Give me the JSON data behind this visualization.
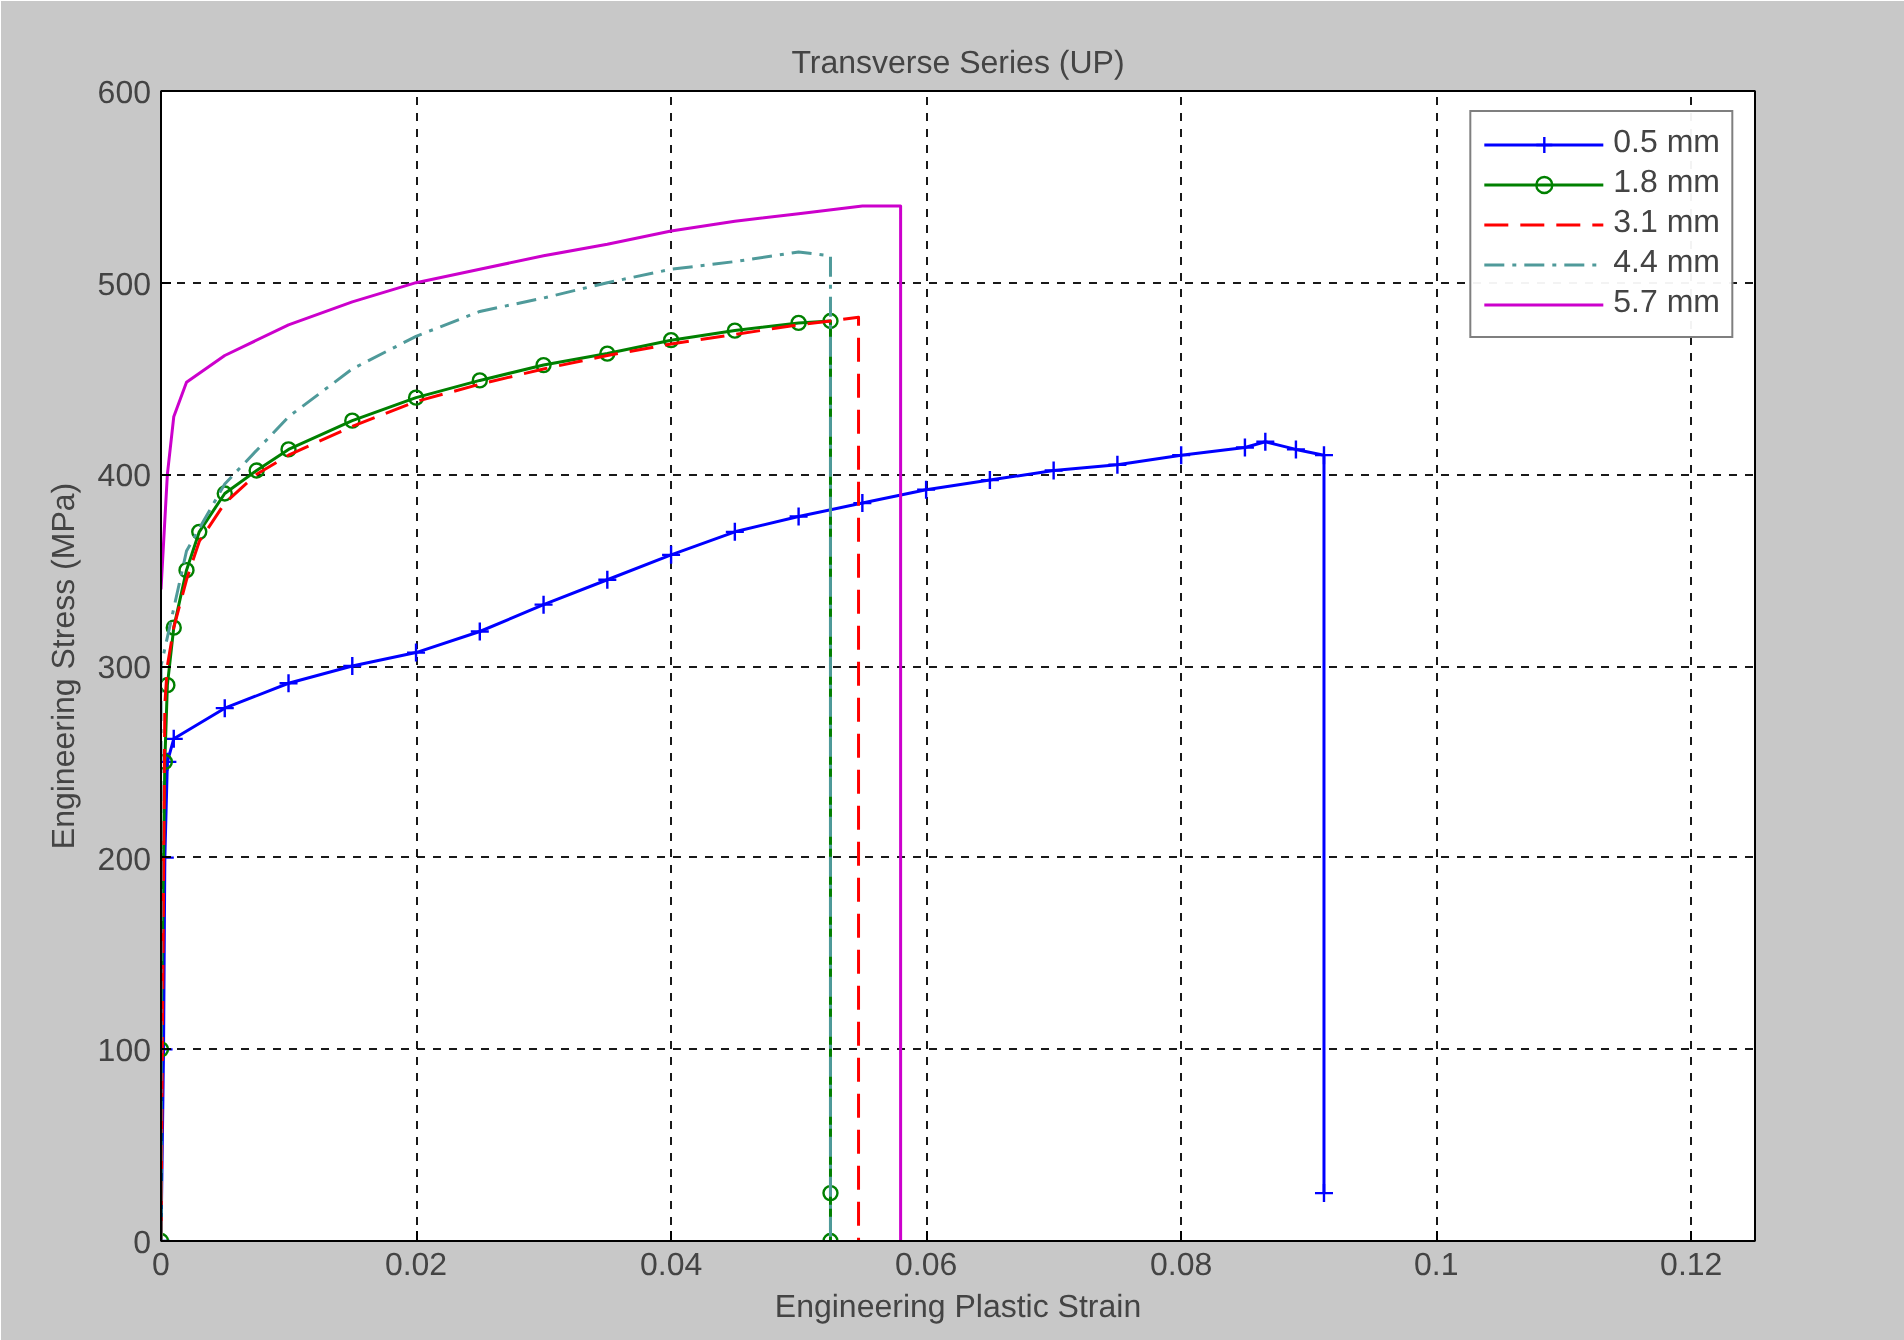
{
  "chart_data": {
    "type": "line",
    "title": "Transverse Series (UP)",
    "xlabel": "Engineering Plastic Strain",
    "ylabel": "Engineering Stress (MPa)",
    "xlim": [
      0,
      0.125
    ],
    "ylim": [
      0,
      600
    ],
    "xticks": [
      0,
      0.02,
      0.04,
      0.06,
      0.08,
      0.1,
      0.12
    ],
    "yticks": [
      0,
      100,
      200,
      300,
      400,
      500,
      600
    ],
    "grid": true,
    "legend": "top right",
    "series": [
      {
        "name": "0.5 mm",
        "color": "#0000ff",
        "marker": "cross",
        "line_style": "solid",
        "x": [
          0,
          0.0002,
          0.0003,
          0.0005,
          0.001,
          0.005,
          0.01,
          0.015,
          0.02,
          0.025,
          0.03,
          0.035,
          0.04,
          0.045,
          0.05,
          0.055,
          0.06,
          0.065,
          0.07,
          0.075,
          0.08,
          0.085,
          0.0866,
          0.089,
          0.0912,
          0.0912
        ],
        "values": [
          0,
          100,
          200,
          250,
          262,
          278,
          291,
          300,
          307,
          318,
          332,
          345,
          358,
          370,
          378,
          385,
          392,
          397,
          402,
          405,
          410,
          414,
          417,
          413,
          410,
          25
        ]
      },
      {
        "name": "1.8 mm",
        "color": "#008000",
        "marker": "circle",
        "line_style": "solid",
        "x": [
          0,
          0,
          0.0003,
          0.0005,
          0.001,
          0.002,
          0.003,
          0.005,
          0.0075,
          0.01,
          0.015,
          0.02,
          0.025,
          0.03,
          0.035,
          0.04,
          0.045,
          0.05,
          0.0525,
          0.0525,
          0.0525
        ],
        "values": [
          0,
          100,
          250,
          290,
          320,
          350,
          370,
          390,
          402,
          413,
          428,
          440,
          449,
          457,
          463,
          470,
          475,
          479,
          480,
          25,
          0
        ]
      },
      {
        "name": "3.1 mm",
        "color": "#ff0000",
        "marker": "none",
        "line_style": "dashed",
        "x": [
          0,
          0.0003,
          0.0005,
          0.001,
          0.002,
          0.003,
          0.005,
          0.0075,
          0.01,
          0.015,
          0.02,
          0.025,
          0.03,
          0.035,
          0.04,
          0.045,
          0.05,
          0.0525,
          0.0547,
          0.0547
        ],
        "values": [
          0,
          280,
          300,
          320,
          345,
          365,
          385,
          400,
          410,
          425,
          438,
          447,
          455,
          462,
          468,
          473,
          478,
          480,
          482,
          0
        ]
      },
      {
        "name": "4.4 mm",
        "color": "#4f9a9a",
        "marker": "none",
        "line_style": "dashdot",
        "x": [
          0,
          0,
          0.002,
          0.005,
          0.01,
          0.015,
          0.02,
          0.025,
          0.03,
          0.035,
          0.04,
          0.045,
          0.05,
          0.0525,
          0.0525
        ],
        "values": [
          0,
          300,
          360,
          395,
          430,
          455,
          472,
          485,
          492,
          500,
          507,
          511,
          516,
          514,
          0
        ]
      },
      {
        "name": "5.7 mm",
        "color": "#cc00cc",
        "marker": "none",
        "line_style": "solid",
        "x": [
          0,
          0.0005,
          0.001,
          0.002,
          0.005,
          0.01,
          0.015,
          0.02,
          0.025,
          0.03,
          0.035,
          0.04,
          0.045,
          0.05,
          0.055,
          0.058,
          0.058
        ],
        "values": [
          340,
          400,
          430,
          448,
          462,
          478,
          490,
          500,
          507,
          514,
          520,
          527,
          532,
          536,
          540,
          540,
          0
        ]
      }
    ]
  }
}
